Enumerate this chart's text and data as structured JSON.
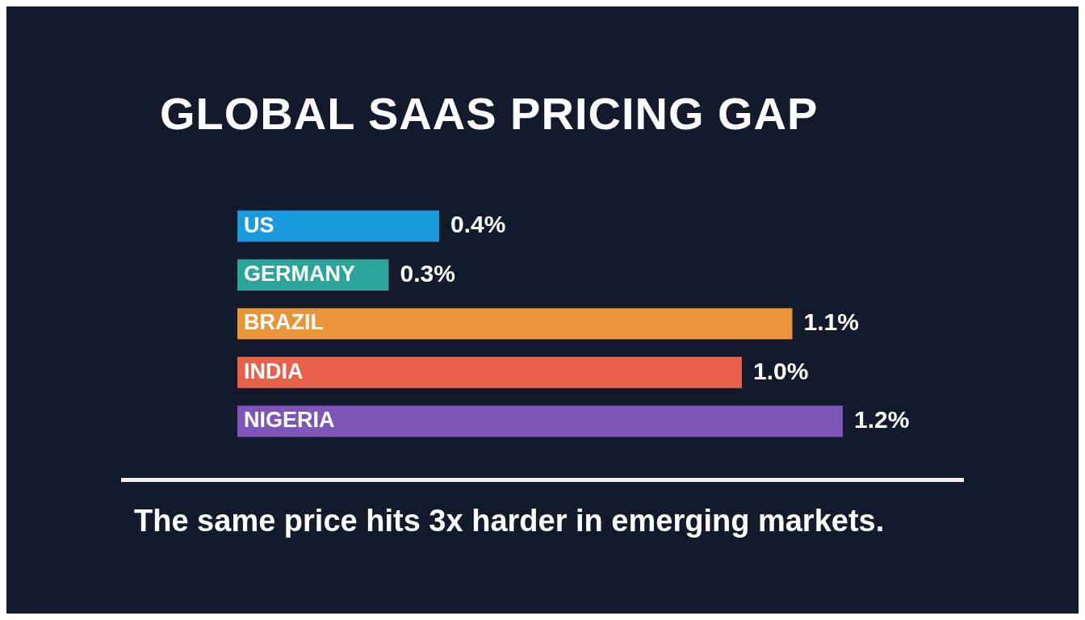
{
  "chart_data": {
    "type": "bar",
    "orientation": "horizontal",
    "title": "GLOBAL SAAS PRICING GAP",
    "categories": [
      "US",
      "GERMANY",
      "BRAZIL",
      "INDIA",
      "NIGERIA"
    ],
    "values": [
      0.4,
      0.3,
      1.1,
      1.0,
      1.2
    ],
    "colors": [
      "#1a9be0",
      "#2aa59a",
      "#e8953a",
      "#e8604a",
      "#7e55b8"
    ],
    "value_labels": [
      "0.4%",
      "0.3%",
      "1.1%",
      "1.0%",
      "1.2%"
    ],
    "annotations": [
      "The same price hits 3x harder in emerging markets."
    ]
  }
}
